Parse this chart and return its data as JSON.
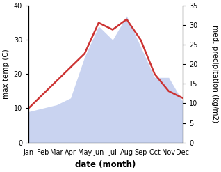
{
  "months": [
    "Jan",
    "Feb",
    "Mar",
    "Apr",
    "May",
    "Jun",
    "Jul",
    "Aug",
    "Sep",
    "Oct",
    "Nov",
    "Dec"
  ],
  "temperature": [
    10,
    14,
    18,
    22,
    26,
    35,
    33,
    36,
    30,
    20,
    15,
    13
  ],
  "precipitation_left_scale": [
    9,
    10,
    11,
    13,
    25,
    34,
    30,
    37,
    28,
    19,
    19,
    12
  ],
  "temp_color": "#cc3333",
  "precip_fill_color": "#c0ccee",
  "ylabel_left": "max temp (C)",
  "ylabel_right": "med. precipitation (kg/m2)",
  "xlabel": "date (month)",
  "ylim_left": [
    0,
    40
  ],
  "ylim_right": [
    0,
    35
  ],
  "yticks_left": [
    0,
    10,
    20,
    30,
    40
  ],
  "yticks_right": [
    0,
    5,
    10,
    15,
    20,
    25,
    30,
    35
  ],
  "label_fontsize": 7.5,
  "tick_fontsize": 7,
  "xlabel_fontsize": 8.5
}
